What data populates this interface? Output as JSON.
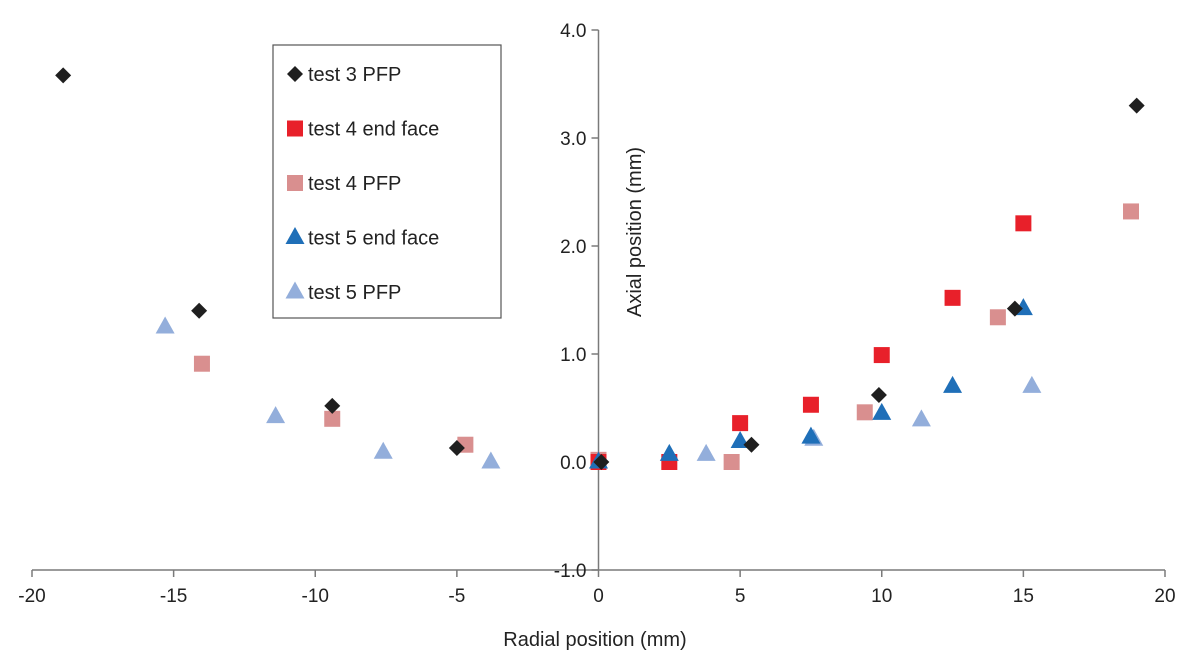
{
  "chart_data": {
    "type": "scatter",
    "title": "",
    "xlabel": "Radial position (mm)",
    "ylabel": "Axial position (mm)",
    "xlim": [
      -20,
      20
    ],
    "ylim": [
      -1.0,
      4.0
    ],
    "x_ticks": [
      -20,
      -15,
      -10,
      -5,
      0,
      5,
      10,
      15,
      20
    ],
    "x_tick_labels": [
      "-20",
      "-15",
      "-10",
      "-5",
      "0",
      "5",
      "10",
      "15",
      "20"
    ],
    "y_ticks": [
      -1.0,
      0.0,
      1.0,
      2.0,
      3.0,
      4.0
    ],
    "y_tick_labels": [
      "-1.0",
      "0.0",
      "1.0",
      "2.0",
      "3.0",
      "4.0"
    ],
    "grid": false,
    "legend_position": "top-left",
    "series": [
      {
        "name": "test 3 PFP",
        "marker": "diamond",
        "color": "#1f1f1f",
        "points": [
          {
            "x": -18.9,
            "y": 3.58
          },
          {
            "x": -14.1,
            "y": 1.4
          },
          {
            "x": -9.4,
            "y": 0.52
          },
          {
            "x": -5.0,
            "y": 0.13
          },
          {
            "x": 0.1,
            "y": 0.0
          },
          {
            "x": 5.4,
            "y": 0.16
          },
          {
            "x": 9.9,
            "y": 0.62
          },
          {
            "x": 14.7,
            "y": 1.42
          },
          {
            "x": 19.0,
            "y": 3.3
          }
        ]
      },
      {
        "name": "test 4 end face",
        "marker": "square",
        "color": "#e8202a",
        "points": [
          {
            "x": 0.0,
            "y": 0.0
          },
          {
            "x": 2.5,
            "y": 0.0
          },
          {
            "x": 5.0,
            "y": 0.36
          },
          {
            "x": 7.5,
            "y": 0.53
          },
          {
            "x": 10.0,
            "y": 0.99
          },
          {
            "x": 12.5,
            "y": 1.52
          },
          {
            "x": 15.0,
            "y": 2.21
          }
        ]
      },
      {
        "name": "test 4 PFP",
        "marker": "square",
        "color": "#d98f8f",
        "points": [
          {
            "x": -14.0,
            "y": 0.91
          },
          {
            "x": -9.4,
            "y": 0.4
          },
          {
            "x": -4.7,
            "y": 0.16
          },
          {
            "x": 0.0,
            "y": 0.02
          },
          {
            "x": 4.7,
            "y": 0.0
          },
          {
            "x": 9.4,
            "y": 0.46
          },
          {
            "x": 14.1,
            "y": 1.34
          },
          {
            "x": 18.8,
            "y": 2.32
          }
        ]
      },
      {
        "name": "test 5 end face",
        "marker": "triangle",
        "color": "#1f6fb8",
        "points": [
          {
            "x": 0.0,
            "y": 0.0
          },
          {
            "x": 2.5,
            "y": 0.07
          },
          {
            "x": 5.0,
            "y": 0.19
          },
          {
            "x": 7.5,
            "y": 0.23
          },
          {
            "x": 10.0,
            "y": 0.45
          },
          {
            "x": 12.5,
            "y": 0.7
          },
          {
            "x": 15.0,
            "y": 1.42
          }
        ]
      },
      {
        "name": "test 5 PFP",
        "marker": "triangle",
        "color": "#93aedb",
        "points": [
          {
            "x": -15.3,
            "y": 1.25
          },
          {
            "x": -11.4,
            "y": 0.42
          },
          {
            "x": -7.6,
            "y": 0.09
          },
          {
            "x": -3.8,
            "y": 0.0
          },
          {
            "x": 0.0,
            "y": 0.0
          },
          {
            "x": 3.8,
            "y": 0.07
          },
          {
            "x": 7.6,
            "y": 0.21
          },
          {
            "x": 11.4,
            "y": 0.39
          },
          {
            "x": 15.3,
            "y": 0.7
          }
        ]
      }
    ]
  }
}
